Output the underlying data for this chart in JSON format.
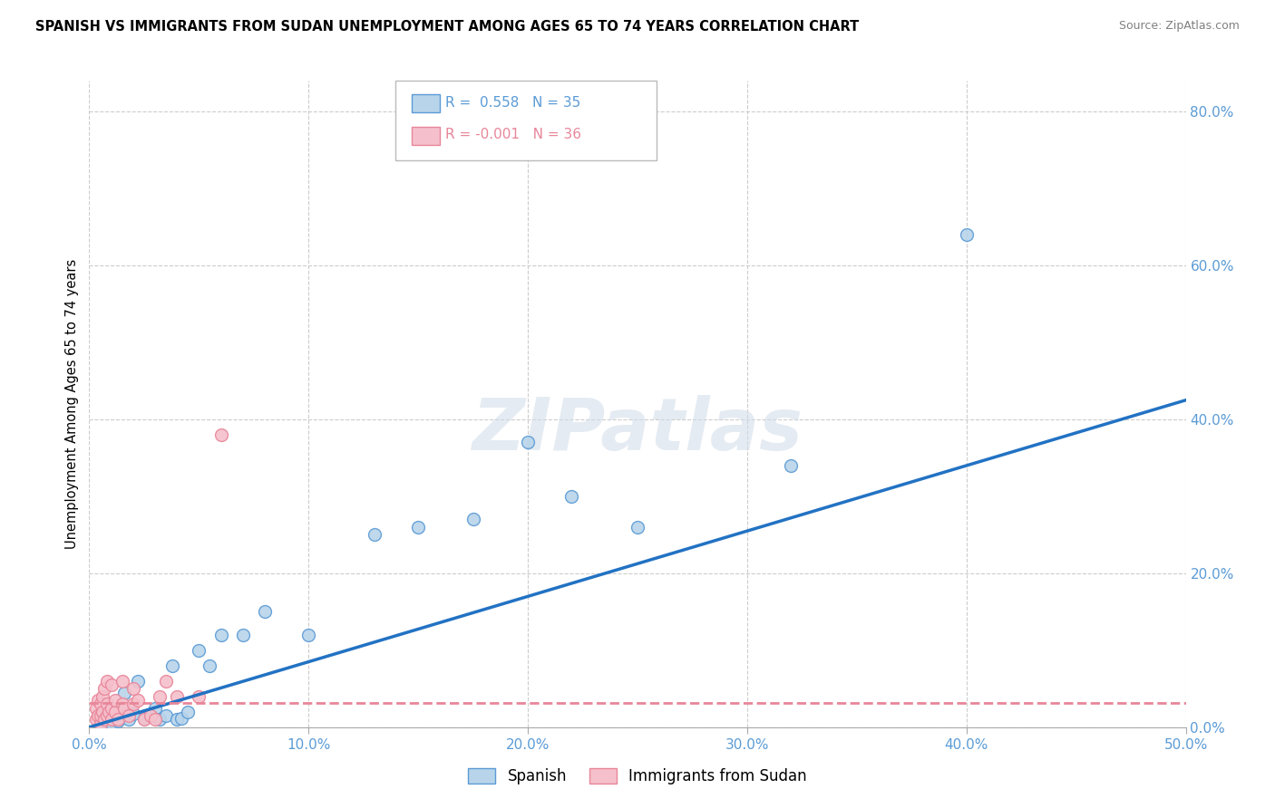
{
  "title": "SPANISH VS IMMIGRANTS FROM SUDAN UNEMPLOYMENT AMONG AGES 65 TO 74 YEARS CORRELATION CHART",
  "source": "Source: ZipAtlas.com",
  "ylabel": "Unemployment Among Ages 65 to 74 years",
  "xlim": [
    0.0,
    0.5
  ],
  "ylim": [
    0.0,
    0.84
  ],
  "xticks": [
    0.0,
    0.1,
    0.2,
    0.3,
    0.4,
    0.5
  ],
  "xticklabels": [
    "0.0%",
    "10.0%",
    "20.0%",
    "30.0%",
    "40.0%",
    "50.0%"
  ],
  "yticks": [
    0.0,
    0.2,
    0.4,
    0.6,
    0.8
  ],
  "yticklabels_right": [
    "0.0%",
    "20.0%",
    "40.0%",
    "60.0%",
    "80.0%"
  ],
  "grid_color": "#cccccc",
  "background_color": "#ffffff",
  "spanish_color": "#b8d4ea",
  "spanish_edge_color": "#5b9bd5",
  "sudan_color": "#f5c0cb",
  "sudan_edge_color": "#e8869a",
  "trendline_spanish_color": "#2272c3",
  "trendline_sudan_color": "#e8869a",
  "watermark": "ZIPatlas",
  "spanish_x": [
    0.005,
    0.007,
    0.008,
    0.009,
    0.01,
    0.012,
    0.013,
    0.015,
    0.016,
    0.018,
    0.02,
    0.022,
    0.025,
    0.028,
    0.03,
    0.032,
    0.035,
    0.038,
    0.04,
    0.042,
    0.045,
    0.05,
    0.055,
    0.06,
    0.07,
    0.08,
    0.1,
    0.13,
    0.15,
    0.175,
    0.2,
    0.22,
    0.25,
    0.32,
    0.4
  ],
  "spanish_y": [
    0.01,
    0.02,
    0.008,
    0.015,
    0.005,
    0.012,
    0.008,
    0.02,
    0.045,
    0.01,
    0.018,
    0.06,
    0.012,
    0.015,
    0.025,
    0.01,
    0.015,
    0.08,
    0.01,
    0.012,
    0.02,
    0.1,
    0.08,
    0.12,
    0.12,
    0.15,
    0.12,
    0.25,
    0.26,
    0.27,
    0.37,
    0.3,
    0.26,
    0.34,
    0.64
  ],
  "sudan_x": [
    0.003,
    0.003,
    0.004,
    0.004,
    0.005,
    0.005,
    0.005,
    0.006,
    0.006,
    0.007,
    0.007,
    0.008,
    0.008,
    0.008,
    0.009,
    0.01,
    0.01,
    0.01,
    0.012,
    0.012,
    0.013,
    0.015,
    0.015,
    0.016,
    0.018,
    0.02,
    0.02,
    0.022,
    0.025,
    0.028,
    0.03,
    0.032,
    0.035,
    0.04,
    0.05,
    0.06
  ],
  "sudan_y": [
    0.01,
    0.025,
    0.015,
    0.035,
    0.005,
    0.015,
    0.03,
    0.02,
    0.04,
    0.01,
    0.05,
    0.015,
    0.06,
    0.03,
    0.02,
    0.01,
    0.025,
    0.055,
    0.02,
    0.035,
    0.01,
    0.03,
    0.06,
    0.025,
    0.015,
    0.03,
    0.05,
    0.035,
    0.01,
    0.015,
    0.01,
    0.04,
    0.06,
    0.04,
    0.04,
    0.38
  ],
  "spanish_trendline_x": [
    0.0,
    0.5
  ],
  "spanish_trendline_y": [
    0.0,
    0.425
  ],
  "sudan_trendline_x": [
    0.0,
    0.5
  ],
  "sudan_trendline_y": [
    0.032,
    0.032
  ]
}
